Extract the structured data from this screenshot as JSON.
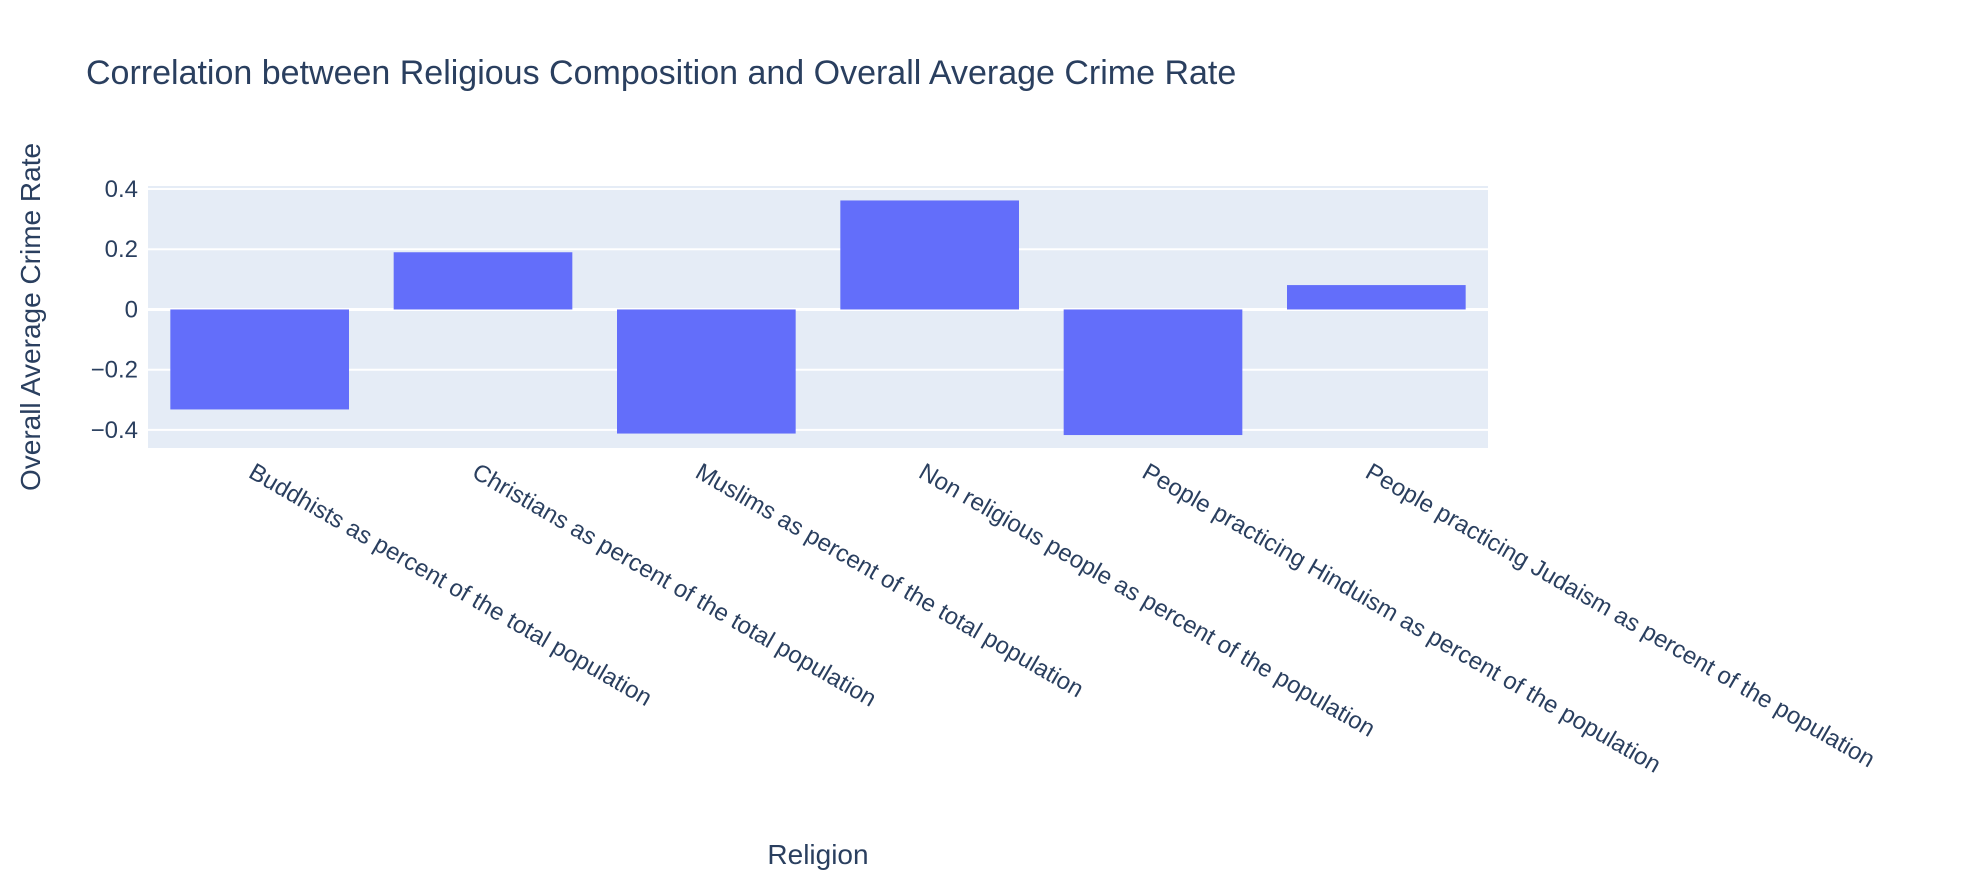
{
  "chart_data": {
    "type": "bar",
    "title": "Correlation between Religious Composition and Overall Average Crime Rate",
    "xlabel": "Religion",
    "ylabel": "Overall Average Crime Rate",
    "categories": [
      "Buddhists as percent of the total population",
      "Christians as percent of the total population",
      "Muslims as percent of the total population",
      "Non religious people as percent of the population",
      "People practicing Hinduism as percent of the population",
      "People practicing Judaism as percent of the population"
    ],
    "values": [
      -0.332,
      0.19,
      -0.412,
      0.362,
      -0.417,
      0.081
    ],
    "ylim": [
      -0.46,
      0.41
    ],
    "yticks": [
      0.4,
      0.2,
      0,
      -0.2,
      -0.4
    ],
    "ytick_labels": [
      "0.4",
      "0.2",
      "0",
      "−0.2",
      "−0.4"
    ],
    "grid": true,
    "colors": {
      "bar": "#636efa",
      "plot_background": "#e5ecf6",
      "grid": "#ffffff",
      "text": "#2a3f5f"
    }
  }
}
